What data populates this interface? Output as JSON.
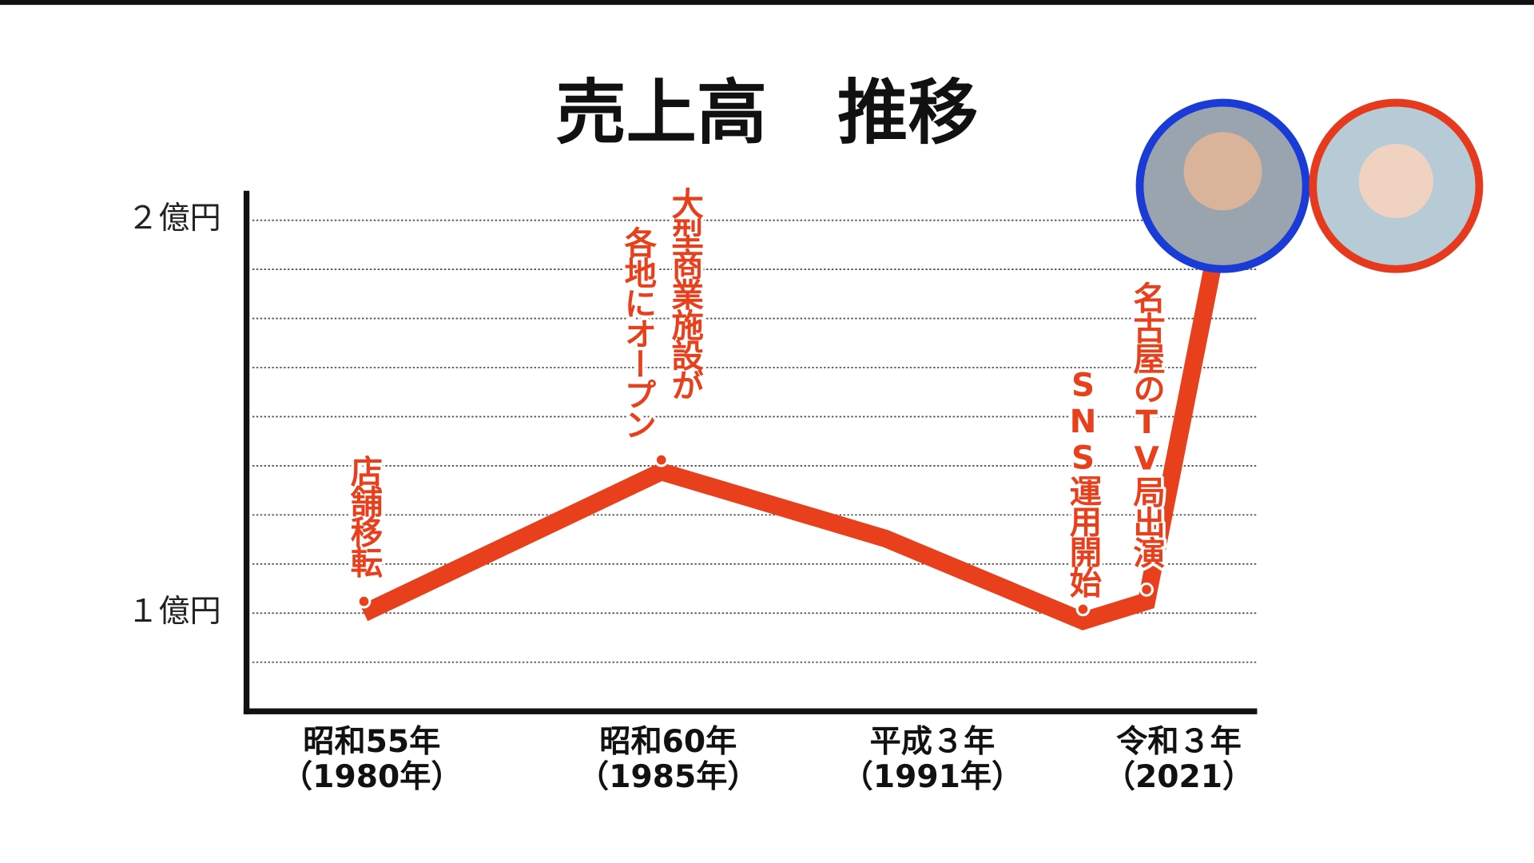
{
  "chart_data": {
    "type": "line",
    "title": "売上高　推移",
    "x_labels": [
      [
        "昭和55年",
        "（1980年）"
      ],
      [
        "昭和60年",
        "（1985年）"
      ],
      [
        "平成３年",
        "（1991年）"
      ],
      [
        "令和３年",
        "（2021）"
      ]
    ],
    "series": [
      {
        "color": "#e8401c",
        "values": [
          1.0,
          1.36,
          1.19,
          0.98,
          1.03,
          1.95
        ]
      }
    ],
    "annotations": [
      [
        "店舗移転"
      ],
      [
        "大型商業施設が",
        "各地にオープン"
      ],
      null,
      [
        "SNS運用開始"
      ],
      [
        "名古屋のTV局出演"
      ],
      null
    ],
    "ylim": [
      0.75,
      2.075
    ],
    "yticks": [
      {
        "value": 1,
        "label": "１億円"
      },
      {
        "value": 2,
        "label": "２億円"
      }
    ],
    "grid_values": [
      0.875,
      1,
      1.125,
      1.25,
      1.375,
      1.5,
      1.625,
      1.75,
      1.875,
      2
    ]
  }
}
